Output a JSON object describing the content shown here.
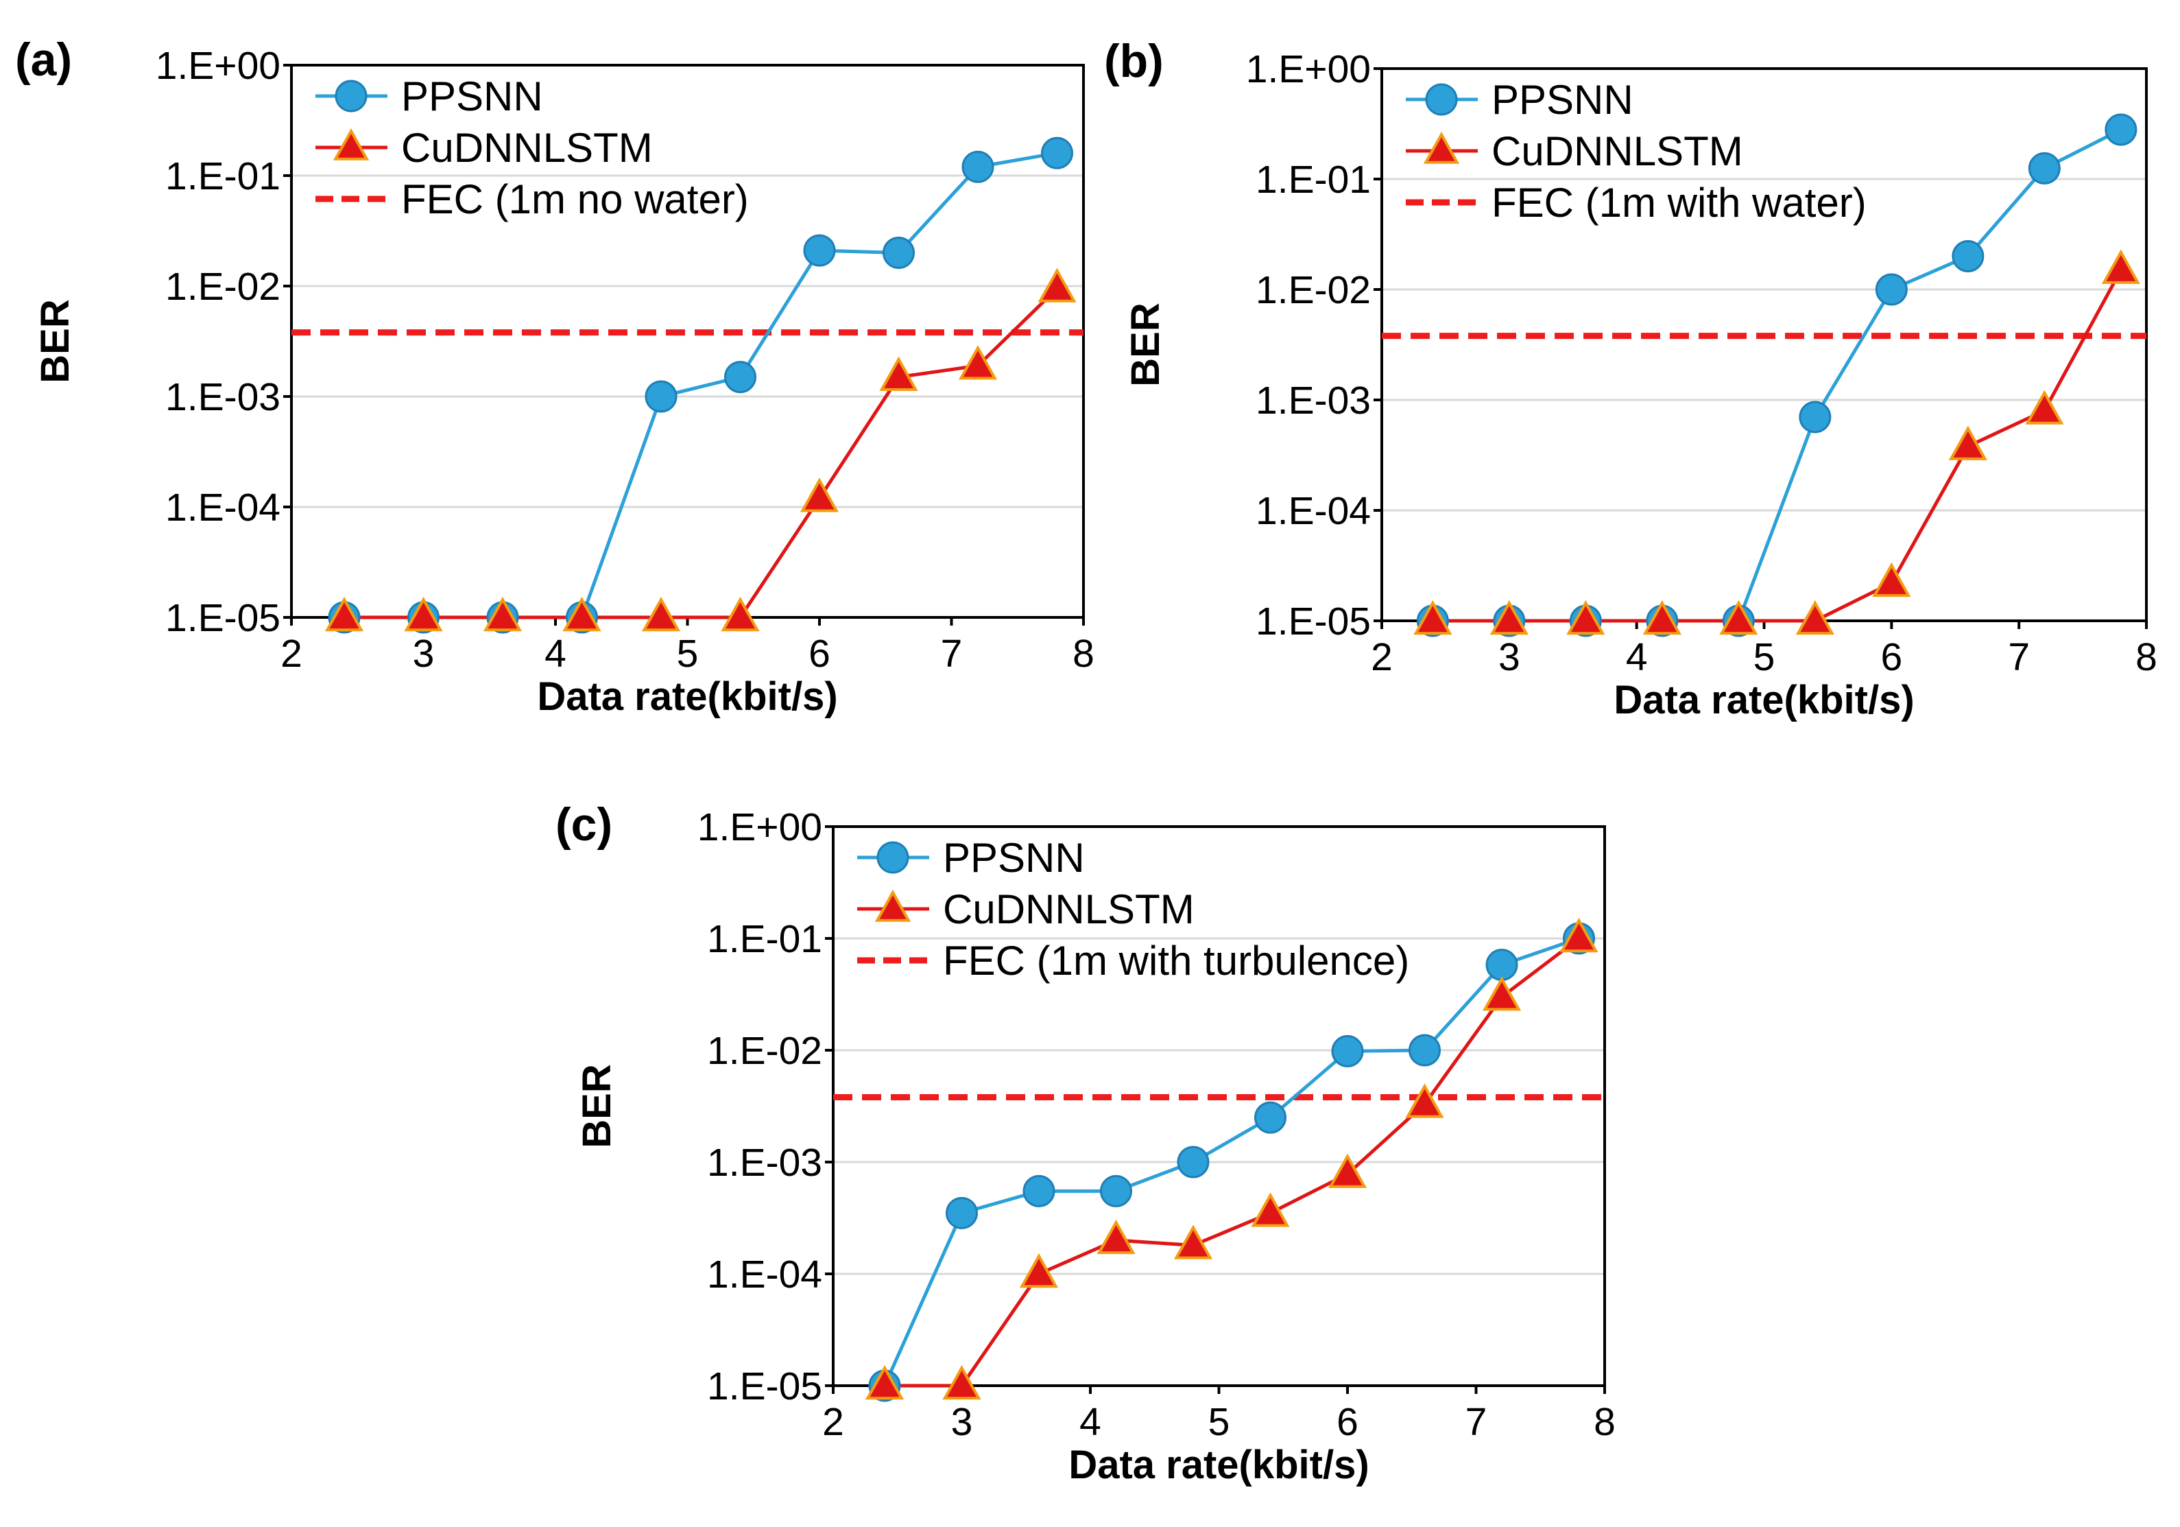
{
  "colors": {
    "ppsnn": "#2ca0d8",
    "ppsnn_marker_edge": "#1f7fb5",
    "cudnnlstm": "#e01515",
    "cudnnlstm_marker_fill": "#e01515",
    "cudnnlstm_marker_edge": "#f39c12",
    "fec": "#ee1c1c",
    "grid": "#d9d9d9",
    "axis": "#000000"
  },
  "chart_data": [
    {
      "panel_label": "(a)",
      "type": "line",
      "xlabel": "Data rate(kbit/s)",
      "ylabel": "BER",
      "y_scale": "log",
      "xlim": [
        2,
        8
      ],
      "ylim": [
        1e-05,
        1
      ],
      "x_ticks": [
        "2",
        "3",
        "4",
        "5",
        "6",
        "7",
        "8"
      ],
      "y_ticks": [
        "1.E-05",
        "1.E-04",
        "1.E-03",
        "1.E-02",
        "1.E-01",
        "1.E+00"
      ],
      "grid": "horizontal",
      "legend_position": "top-left",
      "series": [
        {
          "name": "PPSNN",
          "marker": "circle",
          "x": [
            2.4,
            3.0,
            3.6,
            4.2,
            4.8,
            5.4,
            6.0,
            6.6,
            7.2,
            7.8
          ],
          "y": [
            1e-05,
            1e-05,
            1e-05,
            1e-05,
            0.001,
            0.0015,
            0.021,
            0.02,
            0.12,
            0.16
          ]
        },
        {
          "name": "CuDNNLSTM",
          "marker": "triangle",
          "x": [
            2.4,
            3.0,
            3.6,
            4.2,
            4.8,
            5.4,
            6.0,
            6.6,
            7.2,
            7.8
          ],
          "y": [
            1e-05,
            1e-05,
            1e-05,
            1e-05,
            1e-05,
            1e-05,
            0.00012,
            0.0015,
            0.0019,
            0.0095
          ]
        }
      ],
      "threshold": {
        "name": "FEC (1m no water)",
        "y": 0.0038
      }
    },
    {
      "panel_label": "(b)",
      "type": "line",
      "xlabel": "Data rate(kbit/s)",
      "ylabel": "BER",
      "y_scale": "log",
      "xlim": [
        2,
        8
      ],
      "ylim": [
        1e-05,
        1
      ],
      "x_ticks": [
        "2",
        "3",
        "4",
        "5",
        "6",
        "7",
        "8"
      ],
      "y_ticks": [
        "1.E-05",
        "1.E-04",
        "1.E-03",
        "1.E-02",
        "1.E-01",
        "1.E+00"
      ],
      "grid": "horizontal",
      "legend_position": "top-left",
      "series": [
        {
          "name": "PPSNN",
          "marker": "circle",
          "x": [
            2.4,
            3.0,
            3.6,
            4.2,
            4.8,
            5.4,
            6.0,
            6.6,
            7.2,
            7.8
          ],
          "y": [
            1e-05,
            1e-05,
            1e-05,
            1e-05,
            1e-05,
            0.0007,
            0.01,
            0.02,
            0.125,
            0.28
          ]
        },
        {
          "name": "CuDNNLSTM",
          "marker": "triangle",
          "x": [
            2.4,
            3.0,
            3.6,
            4.2,
            4.8,
            5.4,
            6.0,
            6.6,
            7.2,
            7.8
          ],
          "y": [
            1e-05,
            1e-05,
            1e-05,
            1e-05,
            1e-05,
            1e-05,
            2.2e-05,
            0.00038,
            0.0008,
            0.015
          ]
        }
      ],
      "threshold": {
        "name": "FEC (1m with water)",
        "y": 0.0038
      }
    },
    {
      "panel_label": "(c)",
      "type": "line",
      "xlabel": "Data rate(kbit/s)",
      "ylabel": "BER",
      "y_scale": "log",
      "xlim": [
        2,
        8
      ],
      "ylim": [
        1e-05,
        1
      ],
      "x_ticks": [
        "2",
        "3",
        "4",
        "5",
        "6",
        "7",
        "8"
      ],
      "y_ticks": [
        "1.E-05",
        "1.E-04",
        "1.E-03",
        "1.E-02",
        "1.E-01",
        "1.E+00"
      ],
      "grid": "horizontal",
      "legend_position": "top-left",
      "series": [
        {
          "name": "PPSNN",
          "marker": "circle",
          "x": [
            2.4,
            3.0,
            3.6,
            4.2,
            4.8,
            5.4,
            6.0,
            6.6,
            7.2,
            7.8
          ],
          "y": [
            1e-05,
            0.00035,
            0.00055,
            0.00055,
            0.001,
            0.0025,
            0.0098,
            0.01,
            0.058,
            0.1
          ]
        },
        {
          "name": "CuDNNLSTM",
          "marker": "triangle",
          "x": [
            2.4,
            3.0,
            3.6,
            4.2,
            4.8,
            5.4,
            6.0,
            6.6,
            7.2,
            7.8
          ],
          "y": [
            1e-05,
            1e-05,
            0.0001,
            0.0002,
            0.00018,
            0.00035,
            0.00078,
            0.0033,
            0.03,
            0.1
          ]
        }
      ],
      "threshold": {
        "name": "FEC (1m with turbulence)",
        "y": 0.0038
      }
    }
  ]
}
